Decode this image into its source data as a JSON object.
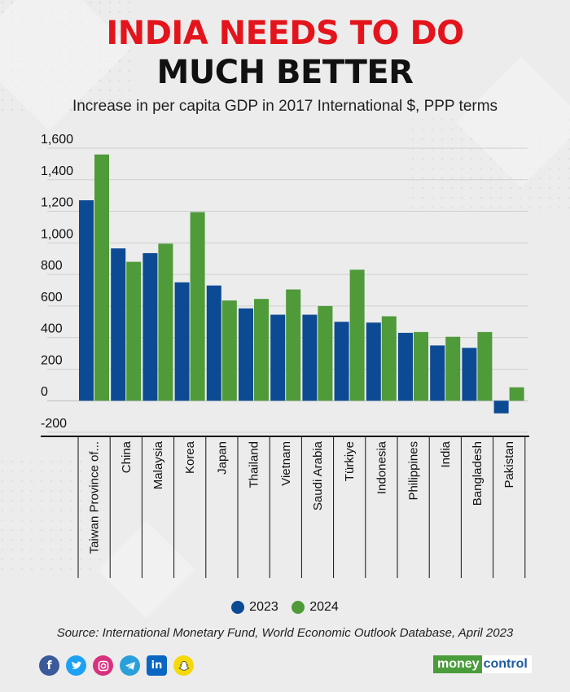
{
  "header": {
    "title_line1": "INDIA NEEDS TO DO",
    "title_line2": "MUCH BETTER",
    "subtitle": "Increase in per capita GDP in 2017 International $, PPP terms"
  },
  "chart_data": {
    "type": "bar",
    "categories": [
      "Taiwan Province of...",
      "China",
      "Malaysia",
      "Korea",
      "Japan",
      "Thailand",
      "Vietnam",
      "Saudi Arabia",
      "Türkiye",
      "Indonesia",
      "Philippines",
      "India",
      "Bangladesh",
      "Pakistan"
    ],
    "series": [
      {
        "name": "2023",
        "color": "#0d4a94",
        "values": [
          1270,
          965,
          935,
          750,
          730,
          585,
          545,
          545,
          500,
          495,
          430,
          350,
          335,
          -80
        ]
      },
      {
        "name": "2024",
        "color": "#4f9a39",
        "values": [
          1560,
          880,
          995,
          1195,
          635,
          645,
          705,
          600,
          830,
          535,
          435,
          405,
          435,
          85
        ]
      }
    ],
    "y_ticks": [
      "1,600",
      "1,400",
      "1,200",
      "1,000",
      "800",
      "600",
      "400",
      "200",
      "0",
      "-200"
    ],
    "ylim": [
      -200,
      1600
    ],
    "grid": true,
    "legend_position": "bottom"
  },
  "legend": {
    "items": [
      {
        "label": "2023",
        "color": "#0d4a94"
      },
      {
        "label": "2024",
        "color": "#4f9a39"
      }
    ]
  },
  "footer": {
    "source": "Source: International Monetary Fund, World Economic Outlook Database, April 2023",
    "social_icons": [
      "facebook-icon",
      "twitter-icon",
      "instagram-icon",
      "telegram-icon",
      "linkedin-icon",
      "snapchat-icon"
    ],
    "logo_part1": "money",
    "logo_part2": "control"
  }
}
